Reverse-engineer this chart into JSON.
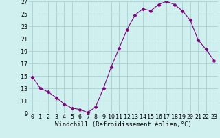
{
  "x": [
    0,
    1,
    2,
    3,
    4,
    5,
    6,
    7,
    8,
    9,
    10,
    11,
    12,
    13,
    14,
    15,
    16,
    17,
    18,
    19,
    20,
    21,
    22,
    23
  ],
  "y": [
    14.8,
    13.0,
    12.4,
    11.5,
    10.5,
    9.8,
    9.6,
    9.1,
    10.0,
    13.0,
    16.5,
    19.5,
    22.5,
    24.8,
    25.8,
    25.5,
    26.5,
    27.0,
    26.5,
    25.5,
    24.0,
    20.8,
    19.3,
    17.5
  ],
  "line_color": "#800080",
  "marker": "D",
  "marker_size": 2.5,
  "bg_color": "#d0f0f0",
  "grid_color": "#a8d0d0",
  "xlabel": "Windchill (Refroidissement éolien,°C)",
  "xlabel_fontsize": 6.5,
  "tick_label_fontsize": 6.0,
  "ylim": [
    9,
    27
  ],
  "yticks": [
    9,
    11,
    13,
    15,
    17,
    19,
    21,
    23,
    25,
    27
  ],
  "xticks": [
    0,
    1,
    2,
    3,
    4,
    5,
    6,
    7,
    8,
    9,
    10,
    11,
    12,
    13,
    14,
    15,
    16,
    17,
    18,
    19,
    20,
    21,
    22,
    23
  ],
  "xlim": [
    -0.5,
    23.5
  ]
}
